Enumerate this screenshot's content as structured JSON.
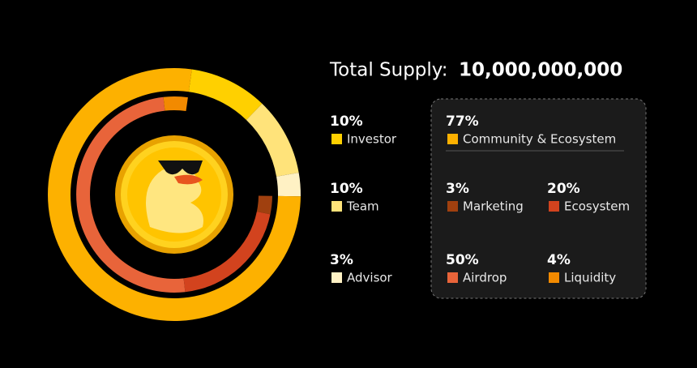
{
  "chart_data": {
    "type": "pie",
    "title": "Total Supply:",
    "total_supply": "10,000,000,000",
    "rings": [
      {
        "categories": [
          "Investor",
          "Team",
          "Advisor",
          "Community & Ecosystem"
        ],
        "values": [
          10,
          10,
          3,
          77
        ],
        "value_labels": [
          "10%",
          "10%",
          "3%",
          "77%"
        ],
        "colors": [
          "#FFD000",
          "#FFE37A",
          "#FFF1C4",
          "#FDB100"
        ]
      },
      {
        "categories": [
          "Marketing",
          "Ecosystem",
          "Airdrop",
          "Liquidity"
        ],
        "values": [
          3,
          20,
          50,
          4
        ],
        "value_labels": [
          "3%",
          "20%",
          "50%",
          "4%"
        ],
        "colors": [
          "#A0400F",
          "#D2431E",
          "#E8643A",
          "#F28A00"
        ]
      }
    ]
  }
}
